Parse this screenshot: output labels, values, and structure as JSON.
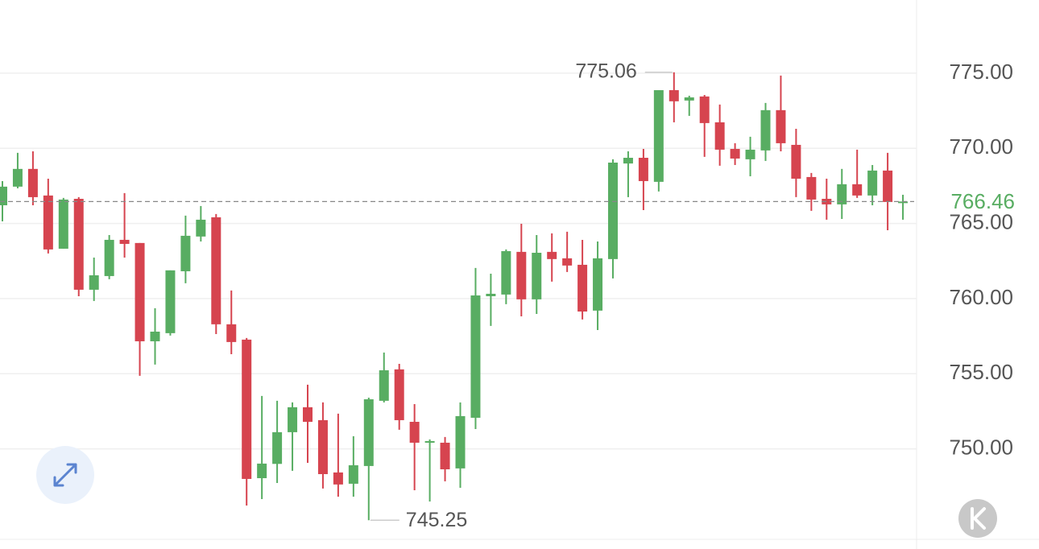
{
  "chart_data": {
    "type": "candlestick",
    "open": [
      766.21,
      767.45,
      768.63,
      766.86,
      763.32,
      766.64,
      760.59,
      761.5,
      763.91,
      763.7,
      757.16,
      757.7,
      761.82,
      764.13,
      765.41,
      758.29,
      757.27,
      748.05,
      749.0,
      751.11,
      752.77,
      751.91,
      748.43,
      747.68,
      748.86,
      753.2,
      755.29,
      751.8,
      750.41,
      750.41,
      748.7,
      752.07,
      760.16,
      760.27,
      763.11,
      759.95,
      763.11,
      762.68,
      762.25,
      759.2,
      762.63,
      768.99,
      769.37,
      767.77,
      773.87,
      773.18,
      773.45,
      771.73,
      769.96,
      769.27,
      769.86,
      772.54,
      770.23,
      768.09,
      766.64,
      766.27,
      767.61,
      766.86,
      768.52,
      766.43
    ],
    "high": [
      767.82,
      769.7,
      769.8,
      767.98,
      766.7,
      766.75,
      762.73,
      764.23,
      767.02,
      763.7,
      759.36,
      761.88,
      765.52,
      766.16,
      765.63,
      760.54,
      757.38,
      753.52,
      753.2,
      753.09,
      754.27,
      753.09,
      752.34,
      750.84,
      753.41,
      756.41,
      755.66,
      752.98,
      750.63,
      750.79,
      753.09,
      762.04,
      761.66,
      763.27,
      764.98,
      764.23,
      764.34,
      764.45,
      763.91,
      763.8,
      769.27,
      769.8,
      769.96,
      773.87,
      775.06,
      773.5,
      773.55,
      772.91,
      770.34,
      770.77,
      773.02,
      774.84,
      771.3,
      768.36,
      767.98,
      768.63,
      769.91,
      768.89,
      769.7,
      766.91
    ],
    "low": [
      765.14,
      767.34,
      766.21,
      763.0,
      763.32,
      760.16,
      759.84,
      761.29,
      762.73,
      754.86,
      755.61,
      757.54,
      761.02,
      763.8,
      757.64,
      756.3,
      746.23,
      746.66,
      747.73,
      748.54,
      749.07,
      747.36,
      746.82,
      746.82,
      745.25,
      753.09,
      751.27,
      747.25,
      746.5,
      747.84,
      747.41,
      751.32,
      758.18,
      759.63,
      758.82,
      758.98,
      761.13,
      761.77,
      758.61,
      757.91,
      761.34,
      766.75,
      765.89,
      767.13,
      771.73,
      772.16,
      769.43,
      768.84,
      768.89,
      768.14,
      769.16,
      769.8,
      766.75,
      765.84,
      765.25,
      765.3,
      766.7,
      766.21,
      764.55,
      765.25
    ],
    "close": [
      767.45,
      768.63,
      766.75,
      763.27,
      766.59,
      760.59,
      761.55,
      763.91,
      763.64,
      757.16,
      757.8,
      761.88,
      764.18,
      765.25,
      758.29,
      757.11,
      748.0,
      749.02,
      751.11,
      752.77,
      751.8,
      748.32,
      747.63,
      748.91,
      753.3,
      755.23,
      751.91,
      750.41,
      750.52,
      748.64,
      752.18,
      760.21,
      760.32,
      763.16,
      759.95,
      763.05,
      762.63,
      762.2,
      759.14,
      762.68,
      769.05,
      769.37,
      767.82,
      773.87,
      773.13,
      773.39,
      771.68,
      769.91,
      769.32,
      769.91,
      772.54,
      770.34,
      767.98,
      766.59,
      766.27,
      767.61,
      766.86,
      768.52,
      766.43,
      766.46
    ],
    "up_color": "#58ad62",
    "down_color": "#d6444f",
    "ylim": [
      743.98,
      779.87
    ],
    "yticks": [
      {
        "value": 750,
        "label": "750.00"
      },
      {
        "value": 755,
        "label": "755.00"
      },
      {
        "value": 760,
        "label": "760.00"
      },
      {
        "value": 765,
        "label": "765.00"
      },
      {
        "value": 770,
        "label": "770.00"
      },
      {
        "value": 775,
        "label": "775.00"
      }
    ],
    "grid": true,
    "max_label": {
      "value": 775.06,
      "label": "775.06"
    },
    "min_label": {
      "value": 745.25,
      "label": "745.25"
    },
    "last_price": {
      "value": 766.46,
      "label": "766.46"
    }
  }
}
